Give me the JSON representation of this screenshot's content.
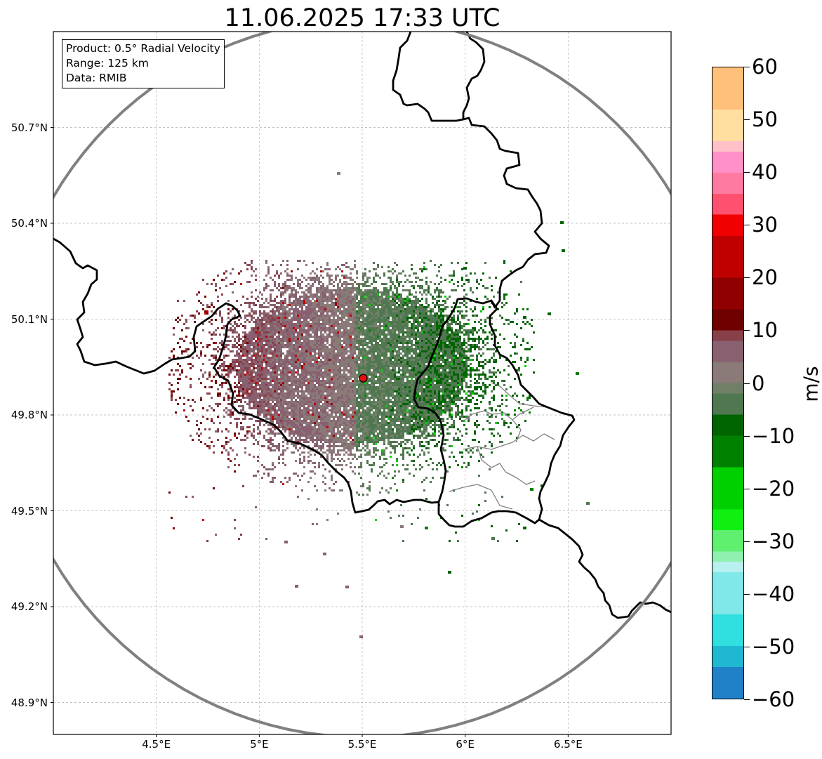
{
  "title": "11.06.2025 17:33 UTC",
  "info_box": {
    "product": "Product: 0.5° Radial Velocity",
    "range": "Range: 125 km",
    "data": "Data: RMIB"
  },
  "map": {
    "lon_range": [
      4.0,
      7.0
    ],
    "lat_range": [
      48.8,
      51.0
    ],
    "lon_ticks": [
      {
        "value": 4.5,
        "label": "4.5°E"
      },
      {
        "value": 5.0,
        "label": "5°E"
      },
      {
        "value": 5.5,
        "label": "5.5°E"
      },
      {
        "value": 6.0,
        "label": "6°E"
      },
      {
        "value": 6.5,
        "label": "6.5°E"
      }
    ],
    "lat_ticks": [
      {
        "value": 50.7,
        "label": "50.7°N"
      },
      {
        "value": 50.4,
        "label": "50.4°N"
      },
      {
        "value": 50.1,
        "label": "50.1°N"
      },
      {
        "value": 49.8,
        "label": "49.8°N"
      },
      {
        "value": 49.5,
        "label": "49.5°N"
      },
      {
        "value": 49.2,
        "label": "49.2°N"
      },
      {
        "value": 48.9,
        "label": "48.9°N"
      }
    ],
    "radar_site": {
      "lon": 5.505,
      "lat": 49.915,
      "color": "#e01010"
    },
    "range_ring_km": 125,
    "range_ring_color": "#808080",
    "border_color": "#000000",
    "region_border_color": "#808080",
    "gridlines": true
  },
  "colorbar": {
    "unit": "m/s",
    "min": -60,
    "max": 60,
    "ticks": [
      {
        "value": 60,
        "label": "60"
      },
      {
        "value": 50,
        "label": "50"
      },
      {
        "value": 40,
        "label": "40"
      },
      {
        "value": 30,
        "label": "30"
      },
      {
        "value": 20,
        "label": "20"
      },
      {
        "value": 10,
        "label": "10"
      },
      {
        "value": 0,
        "label": "0"
      },
      {
        "value": -10,
        "label": "−10"
      },
      {
        "value": -20,
        "label": "−20"
      },
      {
        "value": -30,
        "label": "−30"
      },
      {
        "value": -40,
        "label": "−40"
      },
      {
        "value": -50,
        "label": "−50"
      },
      {
        "value": -60,
        "label": "−60"
      }
    ],
    "stops": [
      {
        "value": 60,
        "color": "#ff9e5c"
      },
      {
        "value": 52,
        "color": "#ffc07a"
      },
      {
        "value": 46,
        "color": "#ffdea0"
      },
      {
        "value": 44,
        "color": "#ffc0c8"
      },
      {
        "value": 40,
        "color": "#ff90c8"
      },
      {
        "value": 36,
        "color": "#ff7aa0"
      },
      {
        "value": 32,
        "color": "#ff5070"
      },
      {
        "value": 28,
        "color": "#f00000"
      },
      {
        "value": 20,
        "color": "#c00000"
      },
      {
        "value": 14,
        "color": "#900000"
      },
      {
        "value": 10,
        "color": "#700000"
      },
      {
        "value": 8,
        "color": "#884048"
      },
      {
        "value": 4,
        "color": "#886070"
      },
      {
        "value": 0,
        "color": "#8a7a78"
      },
      {
        "value": -2,
        "color": "#708068"
      },
      {
        "value": -6,
        "color": "#507850"
      },
      {
        "value": -10,
        "color": "#006400"
      },
      {
        "value": -16,
        "color": "#008000"
      },
      {
        "value": -24,
        "color": "#00d000"
      },
      {
        "value": -28,
        "color": "#10f010"
      },
      {
        "value": -32,
        "color": "#60f070"
      },
      {
        "value": -34,
        "color": "#90f0b0"
      },
      {
        "value": -36,
        "color": "#b8f0f0"
      },
      {
        "value": -44,
        "color": "#80e8e8"
      },
      {
        "value": -50,
        "color": "#30e0e0"
      },
      {
        "value": -54,
        "color": "#20b8d0"
      },
      {
        "value": -60,
        "color": "#2080c8"
      }
    ]
  }
}
